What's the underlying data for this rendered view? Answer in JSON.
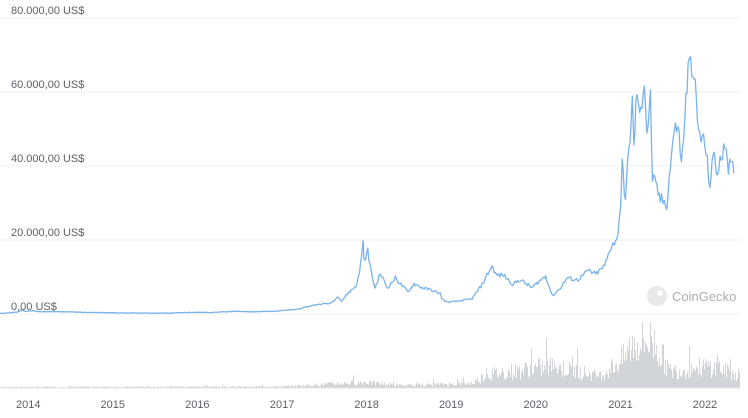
{
  "chart_data": {
    "type": "line",
    "source_label": "CoinGecko",
    "y_axis": {
      "ticks": [
        {
          "value": 0,
          "label": "0,00 US$"
        },
        {
          "value": 20000,
          "label": "20.000,00 US$"
        },
        {
          "value": 40000,
          "label": "40.000,00 US$"
        },
        {
          "value": 60000,
          "label": "60.000,00 US$"
        },
        {
          "value": 80000,
          "label": "80.000,00 US$"
        }
      ],
      "ylim": [
        0,
        80000
      ]
    },
    "x_axis": {
      "ticks": [
        "2014",
        "2015",
        "2016",
        "2017",
        "2018",
        "2019",
        "2020",
        "2021",
        "2022"
      ],
      "xlim": [
        "2013-09-01",
        "2022-06-01"
      ]
    },
    "grid": true,
    "series": [
      {
        "color": "#7ab3ec",
        "points": [
          [
            "2013-09-01",
            140
          ],
          [
            "2013-11-15",
            500
          ],
          [
            "2013-12-05",
            1100
          ],
          [
            "2013-12-20",
            700
          ],
          [
            "2014-01-15",
            900
          ],
          [
            "2014-03-01",
            600
          ],
          [
            "2014-06-01",
            630
          ],
          [
            "2014-09-01",
            450
          ],
          [
            "2014-12-01",
            350
          ],
          [
            "2015-03-01",
            270
          ],
          [
            "2015-06-01",
            240
          ],
          [
            "2015-09-01",
            235
          ],
          [
            "2015-11-05",
            390
          ],
          [
            "2015-12-15",
            450
          ],
          [
            "2016-03-01",
            420
          ],
          [
            "2016-06-15",
            720
          ],
          [
            "2016-09-01",
            600
          ],
          [
            "2016-12-01",
            760
          ],
          [
            "2017-01-05",
            1000
          ],
          [
            "2017-03-01",
            1200
          ],
          [
            "2017-05-25",
            2500
          ],
          [
            "2017-06-15",
            2700
          ],
          [
            "2017-08-01",
            2900
          ],
          [
            "2017-09-01",
            4800
          ],
          [
            "2017-09-15",
            3500
          ],
          [
            "2017-10-15",
            5800
          ],
          [
            "2017-11-15",
            7500
          ],
          [
            "2017-12-01",
            11000
          ],
          [
            "2017-12-10",
            16000
          ],
          [
            "2017-12-17",
            19500
          ],
          [
            "2017-12-22",
            14000
          ],
          [
            "2018-01-06",
            17000
          ],
          [
            "2018-01-20",
            11500
          ],
          [
            "2018-02-06",
            7000
          ],
          [
            "2018-03-01",
            11000
          ],
          [
            "2018-04-01",
            7000
          ],
          [
            "2018-05-05",
            9700
          ],
          [
            "2018-06-29",
            5900
          ],
          [
            "2018-07-25",
            8200
          ],
          [
            "2018-09-01",
            7000
          ],
          [
            "2018-10-01",
            6600
          ],
          [
            "2018-11-15",
            5500
          ],
          [
            "2018-11-25",
            3900
          ],
          [
            "2018-12-15",
            3200
          ],
          [
            "2019-02-01",
            3450
          ],
          [
            "2019-04-01",
            4100
          ],
          [
            "2019-05-15",
            8000
          ],
          [
            "2019-06-26",
            13000
          ],
          [
            "2019-07-15",
            10500
          ],
          [
            "2019-08-15",
            10500
          ],
          [
            "2019-09-25",
            8000
          ],
          [
            "2019-10-26",
            9300
          ],
          [
            "2019-12-15",
            7100
          ],
          [
            "2020-01-15",
            8800
          ],
          [
            "2020-02-13",
            10300
          ],
          [
            "2020-03-13",
            4900
          ],
          [
            "2020-04-15",
            6900
          ],
          [
            "2020-05-15",
            9700
          ],
          [
            "2020-07-01",
            9200
          ],
          [
            "2020-08-15",
            11800
          ],
          [
            "2020-09-15",
            10700
          ],
          [
            "2020-10-25",
            13000
          ],
          [
            "2020-11-25",
            19000
          ],
          [
            "2020-12-15",
            19500
          ],
          [
            "2021-01-01",
            29000
          ],
          [
            "2021-01-08",
            40000
          ],
          [
            "2021-01-22",
            31000
          ],
          [
            "2021-02-21",
            57000
          ],
          [
            "2021-02-28",
            45000
          ],
          [
            "2021-03-13",
            61000
          ],
          [
            "2021-03-25",
            52000
          ],
          [
            "2021-04-14",
            64000
          ],
          [
            "2021-04-25",
            49000
          ],
          [
            "2021-05-10",
            58000
          ],
          [
            "2021-05-19",
            37000
          ],
          [
            "2021-06-22",
            31000
          ],
          [
            "2021-07-20",
            29800
          ],
          [
            "2021-08-15",
            47000
          ],
          [
            "2021-09-06",
            52000
          ],
          [
            "2021-09-21",
            40000
          ],
          [
            "2021-10-20",
            66000
          ],
          [
            "2021-11-10",
            68000
          ],
          [
            "2021-12-04",
            49000
          ],
          [
            "2021-12-31",
            46000
          ],
          [
            "2022-01-22",
            35000
          ],
          [
            "2022-02-10",
            44000
          ],
          [
            "2022-02-24",
            37000
          ],
          [
            "2022-03-28",
            47500
          ],
          [
            "2022-04-12",
            40000
          ],
          [
            "2022-04-28",
            39500
          ],
          [
            "2022-05-05",
            38000
          ]
        ]
      }
    ],
    "volume": {
      "color": "#d1d4d9",
      "note_levels": [
        [
          "2013-09-01",
          0.02
        ],
        [
          "2017-01-01",
          0.03
        ],
        [
          "2017-12-15",
          0.12
        ],
        [
          "2018-06-01",
          0.05
        ],
        [
          "2019-04-01",
          0.1
        ],
        [
          "2019-06-01",
          0.28
        ],
        [
          "2020-03-13",
          0.45
        ],
        [
          "2020-10-01",
          0.25
        ],
        [
          "2021-01-10",
          0.6
        ],
        [
          "2021-02-20",
          0.9
        ],
        [
          "2021-05-19",
          1.0
        ],
        [
          "2021-08-01",
          0.35
        ],
        [
          "2021-11-01",
          0.4
        ],
        [
          "2022-01-22",
          0.45
        ],
        [
          "2022-05-05",
          0.3
        ]
      ]
    }
  }
}
